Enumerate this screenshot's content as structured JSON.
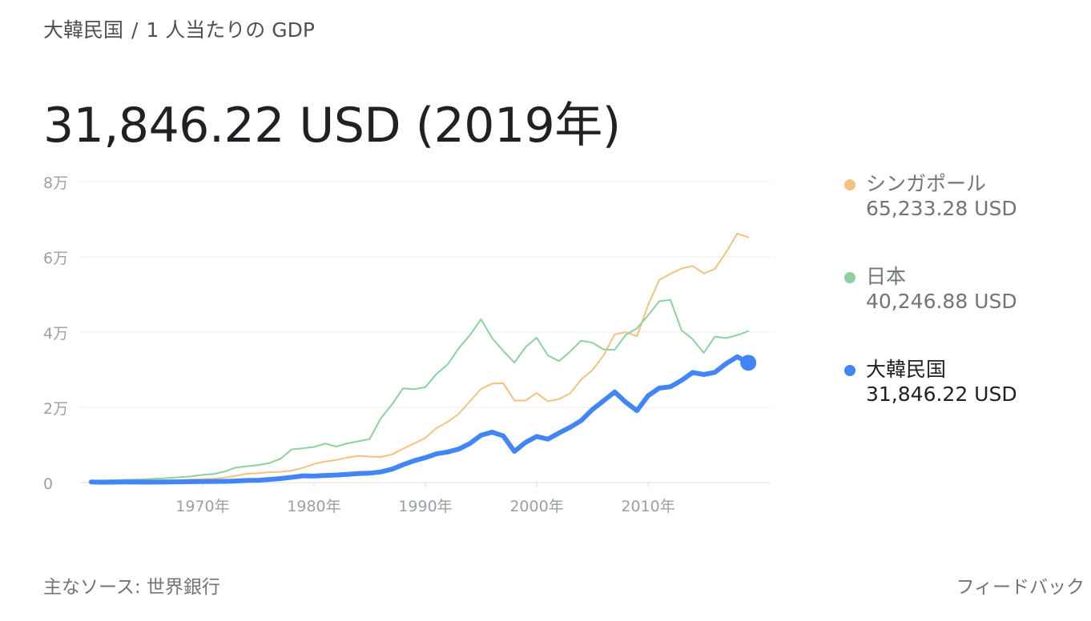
{
  "breadcrumb": {
    "country": "大韓民国",
    "separator": "/",
    "metric": "1 人当たりの GDP"
  },
  "headline": "31,846.22 USD (2019年)",
  "legend": [
    {
      "name": "シンガポール",
      "value": "65,233.28 USD",
      "color": "#f4c27f",
      "active": false
    },
    {
      "name": "日本",
      "value": "40,246.88 USD",
      "color": "#8fd19e",
      "active": false
    },
    {
      "name": "大韓民国",
      "value": "31,846.22 USD",
      "color": "#4285f4",
      "active": true
    }
  ],
  "footer": {
    "source": "主なソース: 世界銀行",
    "feedback": "フィードバック"
  },
  "chart_data": {
    "type": "line",
    "xlabel": "",
    "ylabel": "",
    "xlim": [
      1959,
      2021
    ],
    "ylim": [
      0,
      80000
    ],
    "y_ticks": [
      {
        "value": 0,
        "label": "0"
      },
      {
        "value": 20000,
        "label": "2万"
      },
      {
        "value": 40000,
        "label": "4万"
      },
      {
        "value": 60000,
        "label": "6万"
      },
      {
        "value": 80000,
        "label": "8万"
      }
    ],
    "x_ticks": [
      {
        "value": 1970,
        "label": "1970年"
      },
      {
        "value": 1980,
        "label": "1980年"
      },
      {
        "value": 1990,
        "label": "1990年"
      },
      {
        "value": 2000,
        "label": "2000年"
      },
      {
        "value": 2010,
        "label": "2010年"
      }
    ],
    "grid": true,
    "legend_position": "right",
    "highlight": {
      "series": "大韓民国",
      "x": 2019,
      "y": 31846.22
    },
    "series": [
      {
        "name": "シンガポール",
        "color": "#f4c27f",
        "width": 2,
        "x": [
          1960,
          1961,
          1962,
          1963,
          1964,
          1965,
          1966,
          1967,
          1968,
          1969,
          1970,
          1971,
          1972,
          1973,
          1974,
          1975,
          1976,
          1977,
          1978,
          1979,
          1980,
          1981,
          1982,
          1983,
          1984,
          1985,
          1986,
          1987,
          1988,
          1989,
          1990,
          1991,
          1992,
          1993,
          1994,
          1995,
          1996,
          1997,
          1998,
          1999,
          2000,
          2001,
          2002,
          2003,
          2004,
          2005,
          2006,
          2007,
          2008,
          2009,
          2010,
          2011,
          2012,
          2013,
          2014,
          2015,
          2016,
          2017,
          2018,
          2019
        ],
        "y": [
          430,
          450,
          470,
          510,
          490,
          520,
          570,
          620,
          710,
          810,
          930,
          1050,
          1340,
          1780,
          2360,
          2510,
          2770,
          2850,
          3190,
          3900,
          4930,
          5600,
          6020,
          6640,
          7100,
          6900,
          6800,
          7500,
          9000,
          10400,
          11860,
          14500,
          16100,
          18300,
          21600,
          24900,
          26300,
          26400,
          21800,
          21800,
          23800,
          21600,
          22200,
          23700,
          27400,
          29900,
          33800,
          39400,
          40000,
          38900,
          47200,
          53900,
          55500,
          56900,
          57600,
          55600,
          56800,
          61200,
          66200,
          65233.28
        ]
      },
      {
        "name": "日本",
        "color": "#8fd19e",
        "width": 2,
        "x": [
          1960,
          1961,
          1962,
          1963,
          1964,
          1965,
          1966,
          1967,
          1968,
          1969,
          1970,
          1971,
          1972,
          1973,
          1974,
          1975,
          1976,
          1977,
          1978,
          1979,
          1980,
          1981,
          1982,
          1983,
          1984,
          1985,
          1986,
          1987,
          1988,
          1989,
          1990,
          1991,
          1992,
          1993,
          1994,
          1995,
          1996,
          1997,
          1998,
          1999,
          2000,
          2001,
          2002,
          2003,
          2004,
          2005,
          2006,
          2007,
          2008,
          2009,
          2010,
          2011,
          2012,
          2013,
          2014,
          2015,
          2016,
          2017,
          2018,
          2019
        ],
        "y": [
          480,
          560,
          630,
          720,
          840,
          920,
          1060,
          1230,
          1450,
          1670,
          2040,
          2270,
          2950,
          3990,
          4350,
          4660,
          5200,
          6340,
          8820,
          9100,
          9460,
          10360,
          9580,
          10420,
          10980,
          11580,
          17110,
          20750,
          25050,
          24800,
          25360,
          28900,
          31400,
          35700,
          39200,
          43400,
          38400,
          35000,
          31900,
          36000,
          38500,
          33800,
          32300,
          34800,
          37700,
          37200,
          35400,
          35300,
          39300,
          41000,
          44500,
          48200,
          48600,
          40500,
          38100,
          34500,
          38800,
          38400,
          39200,
          40246.88
        ]
      },
      {
        "name": "大韓民国",
        "color": "#4285f4",
        "width": 6,
        "x": [
          1960,
          1961,
          1962,
          1963,
          1964,
          1965,
          1966,
          1967,
          1968,
          1969,
          1970,
          1971,
          1972,
          1973,
          1974,
          1975,
          1976,
          1977,
          1978,
          1979,
          1980,
          1981,
          1982,
          1983,
          1984,
          1985,
          1986,
          1987,
          1988,
          1989,
          1990,
          1991,
          1992,
          1993,
          1994,
          1995,
          1996,
          1997,
          1998,
          1999,
          2000,
          2001,
          2002,
          2003,
          2004,
          2005,
          2006,
          2007,
          2008,
          2009,
          2010,
          2011,
          2012,
          2013,
          2014,
          2015,
          2016,
          2017,
          2018,
          2019
        ],
        "y": [
          158,
          94,
          106,
          146,
          124,
          108,
          133,
          161,
          198,
          243,
          279,
          301,
          323,
          406,
          563,
          615,
          830,
          1055,
          1405,
          1783,
          1715,
          1883,
          1992,
          2199,
          2413,
          2482,
          2835,
          3555,
          4748,
          5817,
          6610,
          7637,
          8127,
          8885,
          10385,
          12565,
          13403,
          12398,
          8281,
          10672,
          12257,
          11561,
          13165,
          14673,
          16496,
          19403,
          21744,
          24086,
          21346,
          19122,
          23087,
          25096,
          25459,
          27180,
          29250,
          28724,
          29288,
          31616,
          33447,
          31846.22
        ]
      }
    ]
  }
}
